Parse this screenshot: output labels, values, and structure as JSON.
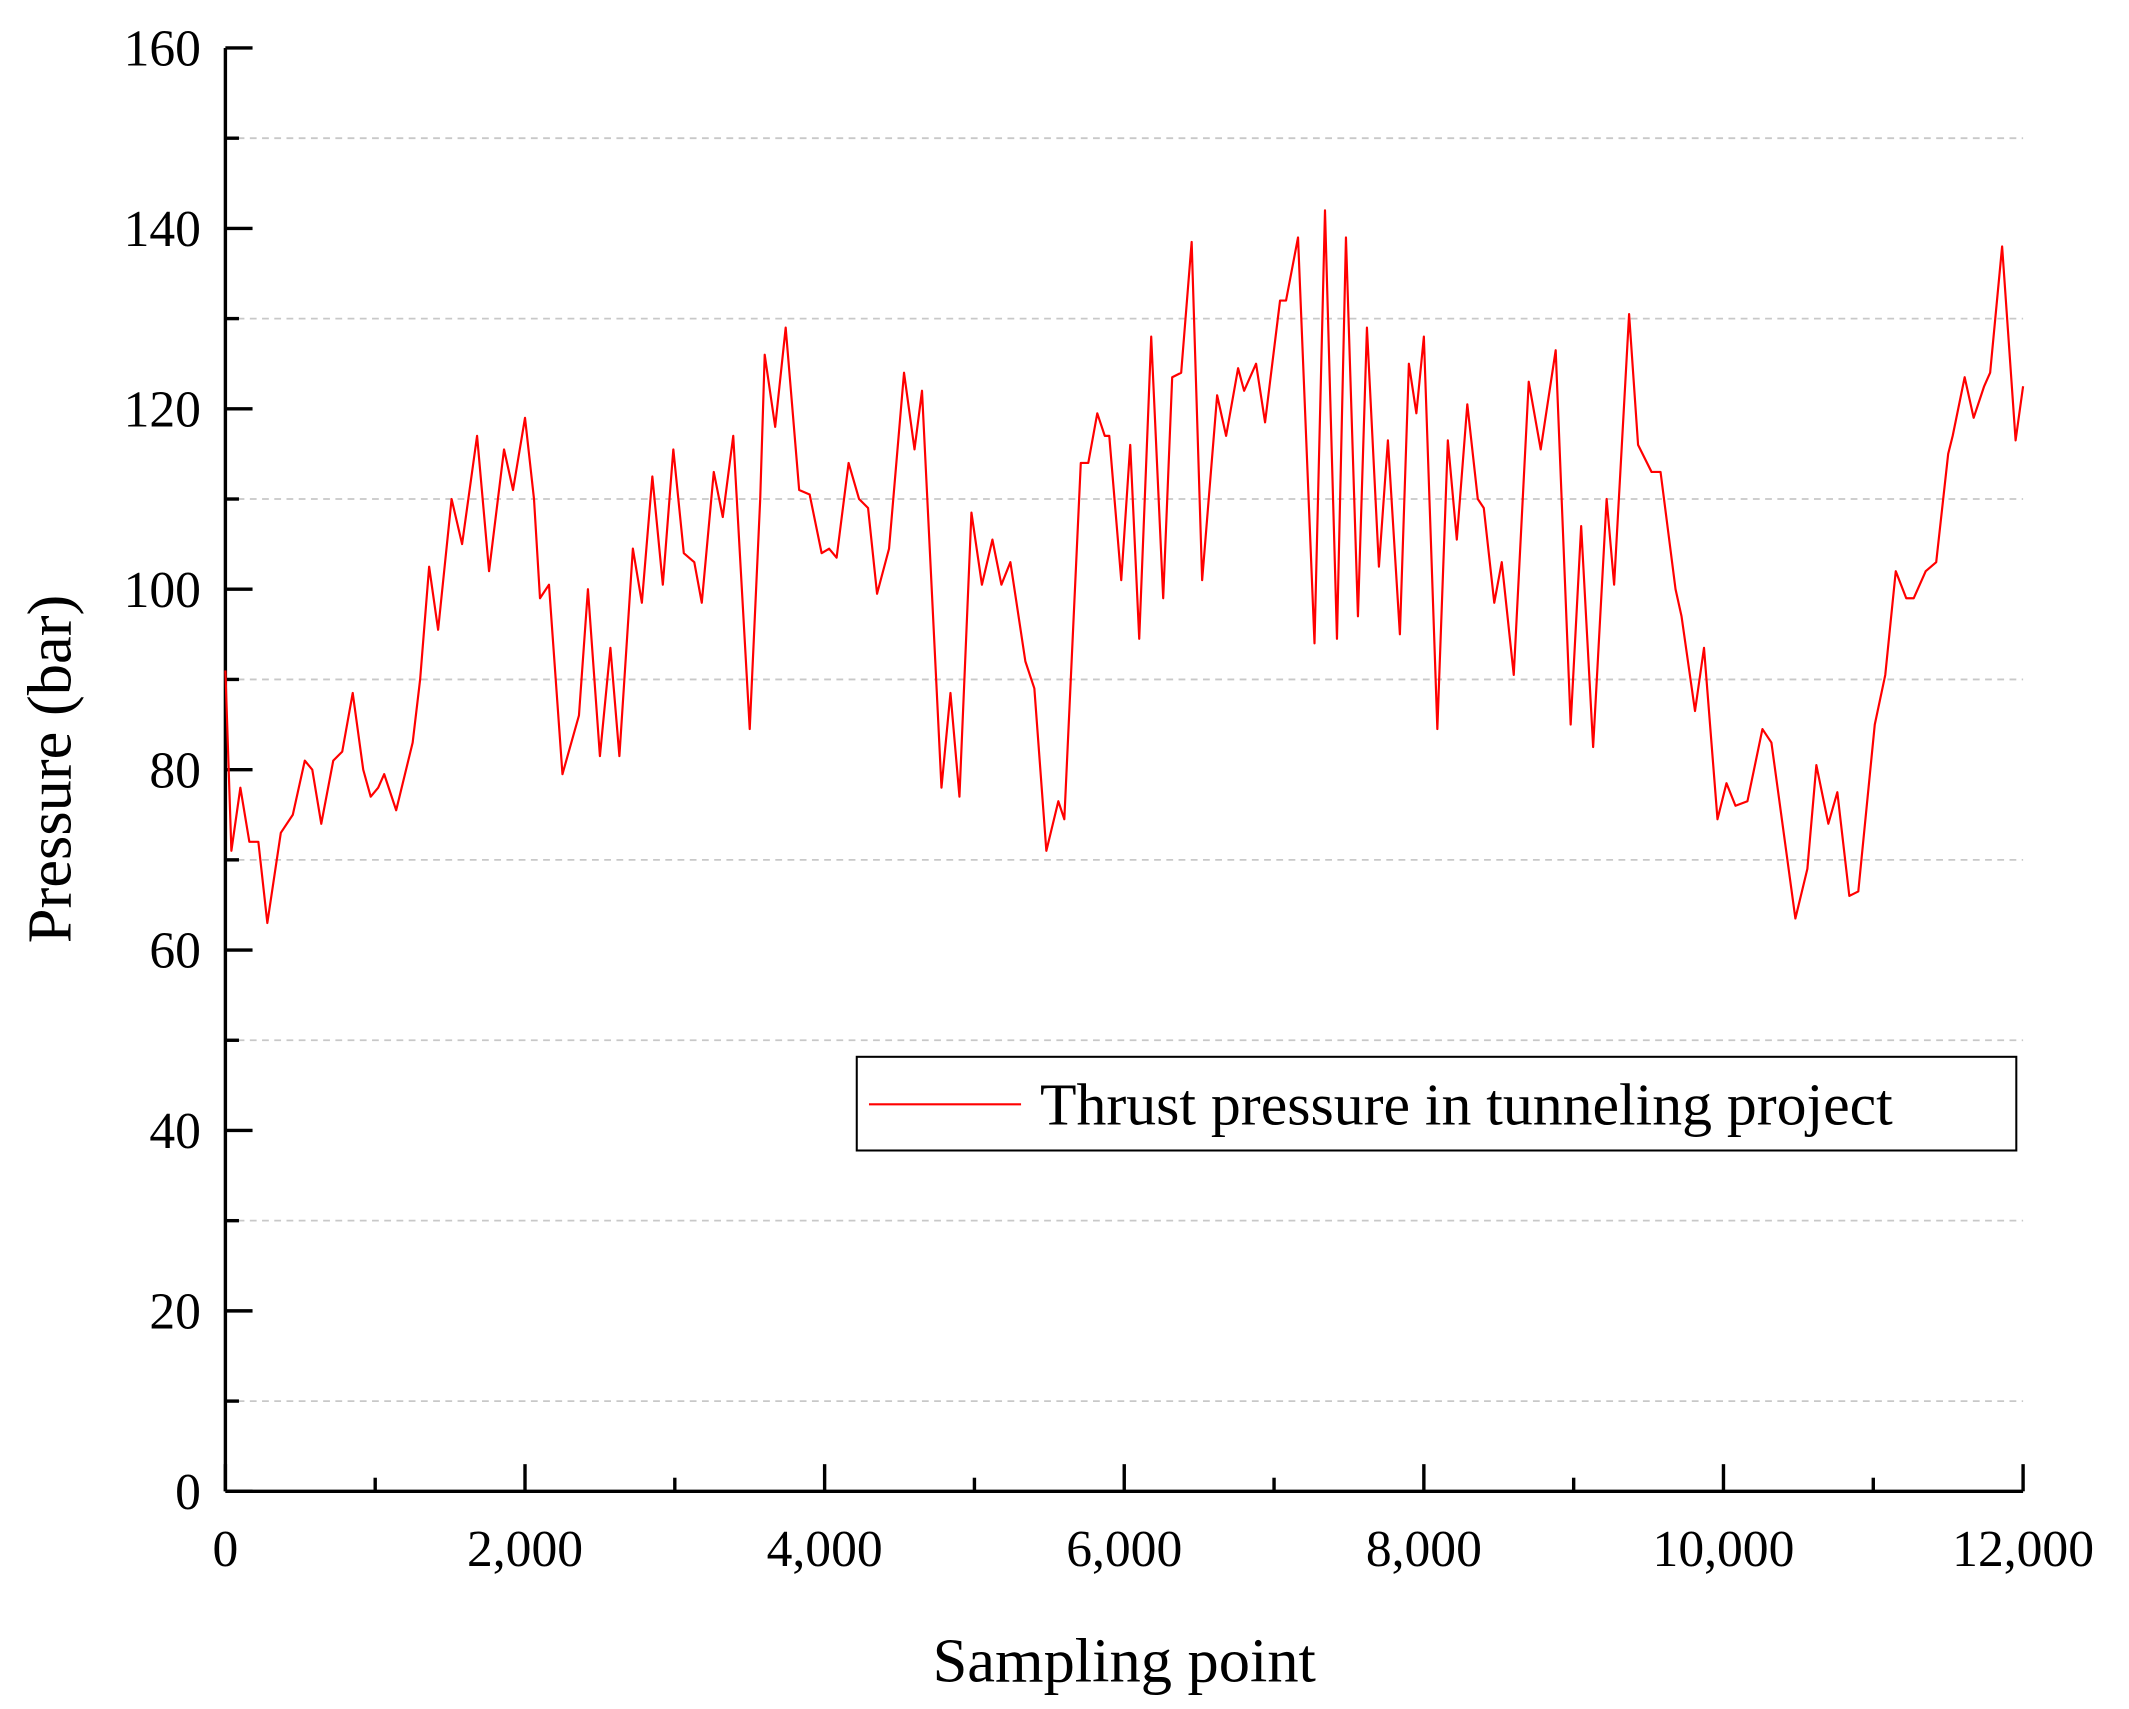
{
  "chart_data": {
    "type": "line",
    "xlabel": "Sampling point",
    "ylabel": "Pressure (bar)",
    "xlim": [
      0,
      12000
    ],
    "ylim": [
      0,
      160
    ],
    "xticks": [
      0,
      {
        "value": 2000,
        "label": "2,000"
      },
      {
        "value": 4000,
        "label": "4,000"
      },
      {
        "value": 6000,
        "label": "6,000"
      },
      {
        "value": 8000,
        "label": "8,000"
      },
      {
        "value": 10000,
        "label": "10,000"
      },
      {
        "value": 12000,
        "label": "12,000"
      }
    ],
    "yticks": [
      0,
      20,
      40,
      60,
      80,
      100,
      120,
      140,
      160
    ],
    "minor_xticks": [
      1000,
      3000,
      5000,
      7000,
      9000,
      11000
    ],
    "minor_yticks": [
      10,
      30,
      50,
      70,
      90,
      110,
      130,
      150
    ],
    "grid": "minor_y",
    "legend": "right",
    "x": [
      0,
      40,
      100,
      160,
      220,
      280,
      370,
      450,
      530,
      580,
      640,
      720,
      780,
      850,
      920,
      970,
      1020,
      1060,
      1140,
      1250,
      1300,
      1360,
      1420,
      1510,
      1580,
      1680,
      1760,
      1860,
      1920,
      2000,
      2060,
      2100,
      2160,
      2250,
      2360,
      2420,
      2500,
      2570,
      2630,
      2720,
      2780,
      2850,
      2920,
      2990,
      3060,
      3130,
      3180,
      3260,
      3320,
      3390,
      3500,
      3570,
      3600,
      3670,
      3740,
      3830,
      3900,
      3980,
      4030,
      4080,
      4160,
      4230,
      4290,
      4350,
      4430,
      4530,
      4600,
      4650,
      4780,
      4840,
      4900,
      4980,
      5050,
      5120,
      5180,
      5240,
      5340,
      5400,
      5480,
      5560,
      5600,
      5710,
      5760,
      5820,
      5870,
      5900,
      5980,
      6040,
      6100,
      6180,
      6260,
      6320,
      6380,
      6450,
      6520,
      6620,
      6680,
      6760,
      6800,
      6880,
      6940,
      7040,
      7080,
      7160,
      7270,
      7340,
      7420,
      7480,
      7560,
      7620,
      7700,
      7760,
      7840,
      7900,
      7950,
      8000,
      8090,
      8160,
      8220,
      8290,
      8360,
      8400,
      8470,
      8520,
      8600,
      8700,
      8780,
      8880,
      8980,
      9050,
      9130,
      9220,
      9270,
      9370,
      9430,
      9520,
      9580,
      9680,
      9720,
      9810,
      9870,
      9960,
      10020,
      10080,
      10160,
      10260,
      10320,
      10480,
      10560,
      10620,
      10700,
      10760,
      10840,
      10900,
      11010,
      11080,
      11150,
      11220,
      11270,
      11350,
      11420,
      11500,
      11530,
      11610,
      11670,
      11740,
      11780,
      11860,
      11950,
      12000
    ],
    "series": [
      {
        "name": "Thrust pressure in tunneling project",
        "color": "#ff0000",
        "values": [
          91,
          71,
          78,
          72,
          72,
          63,
          73,
          75,
          81,
          80,
          74,
          81,
          82,
          88.5,
          80,
          77,
          78,
          79.5,
          75.5,
          83,
          90,
          102.5,
          95.5,
          110,
          105,
          117,
          102,
          115.5,
          111,
          119,
          110,
          99,
          100.5,
          79.5,
          86,
          100,
          81.5,
          93.5,
          81.5,
          104.5,
          98.5,
          112.5,
          100.5,
          115.5,
          104,
          103,
          98.5,
          113,
          108,
          117,
          84.5,
          110,
          126,
          118,
          129,
          111,
          110.5,
          104,
          104.5,
          103.5,
          114,
          110,
          109,
          99.5,
          104.5,
          124,
          115.5,
          122,
          78,
          88.5,
          77,
          108.5,
          100.5,
          105.5,
          100.5,
          103,
          92,
          89,
          71,
          76.5,
          74.5,
          114,
          114,
          119.5,
          117,
          117,
          101,
          116,
          94.5,
          128,
          99,
          123.5,
          124,
          138.5,
          101,
          121.5,
          117,
          124.5,
          122,
          125,
          118.5,
          132,
          132,
          139,
          94,
          142,
          94.5,
          139,
          97,
          129,
          102.5,
          116.5,
          95,
          125,
          119.5,
          128,
          84.5,
          116.5,
          105.5,
          120.5,
          110,
          109,
          98.5,
          103,
          90.5,
          123,
          115.5,
          126.5,
          85,
          107,
          82.5,
          110,
          100.5,
          130.5,
          116,
          113,
          113,
          100,
          97,
          86.5,
          93.5,
          74.5,
          78.5,
          76,
          76.5,
          84.5,
          83,
          63.5,
          69,
          80.5,
          74,
          77.5,
          66,
          66.5,
          85,
          90.5,
          102,
          99,
          99,
          102,
          103,
          115,
          117,
          123.5,
          119,
          122.5,
          124,
          138,
          116.5,
          122.5
        ]
      }
    ]
  }
}
